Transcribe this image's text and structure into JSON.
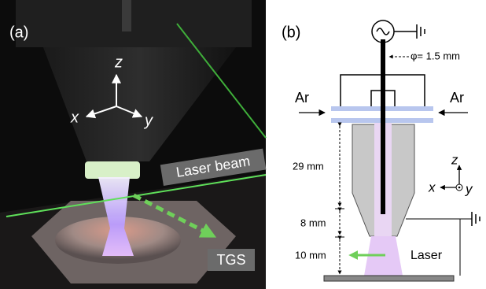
{
  "panel_a": {
    "label": "(a)",
    "axes": {
      "z": "z",
      "x": "x",
      "y": "y"
    },
    "laser_label": "Laser beam",
    "tgs_label": "TGS"
  },
  "panel_b": {
    "label": "(b)",
    "diameter": "φ= 1.5 mm",
    "gas_left": "Ar",
    "gas_right": "Ar",
    "dimensions": [
      "29 mm",
      "8 mm",
      "10 mm"
    ],
    "axes": {
      "z": "z",
      "x": "x",
      "y": "y"
    },
    "laser_label": "Laser"
  }
}
